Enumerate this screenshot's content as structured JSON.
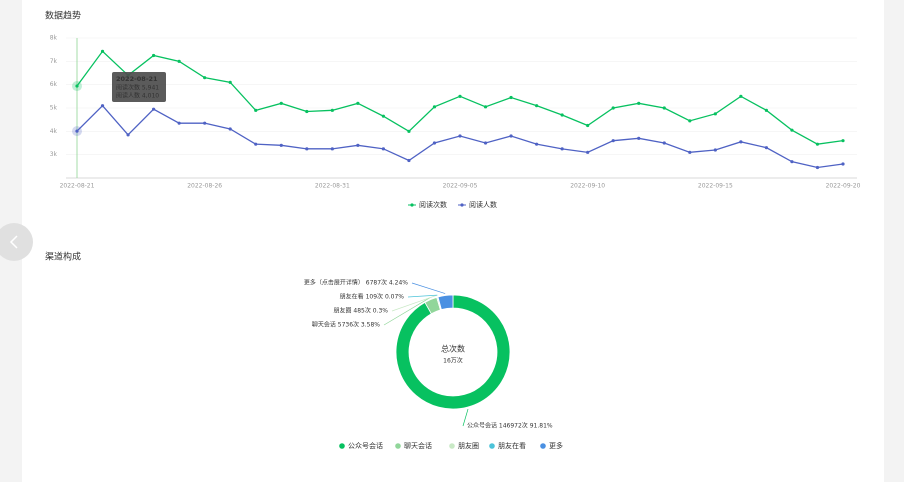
{
  "chart_data": [
    {
      "type": "line",
      "title": "数据趋势",
      "categories": [
        "2022-08-21",
        null,
        null,
        null,
        null,
        "2022-08-26",
        null,
        null,
        null,
        null,
        "2022-08-31",
        null,
        null,
        null,
        null,
        "2022-09-05",
        null,
        null,
        null,
        null,
        "2022-09-10",
        null,
        null,
        null,
        null,
        "2022-09-15",
        null,
        null,
        null,
        null,
        "2022-09-20"
      ],
      "series": [
        {
          "name": "阅读次数",
          "color": "#07c160",
          "values": [
            5941,
            7430,
            6400,
            7250,
            7000,
            6300,
            6100,
            4900,
            5200,
            4850,
            4900,
            5200,
            4650,
            4000,
            5050,
            5500,
            5050,
            5450,
            5100,
            4700,
            4250,
            5000,
            5200,
            5000,
            4450,
            4750,
            5500,
            4900,
            4050,
            3450,
            3600
          ]
        },
        {
          "name": "阅读人数",
          "color": "#4f62c4",
          "values": [
            4010,
            5100,
            3850,
            4950,
            4350,
            4350,
            4100,
            3450,
            3400,
            3250,
            3250,
            3400,
            3250,
            2750,
            3500,
            3800,
            3500,
            3800,
            3450,
            3250,
            3100,
            3600,
            3700,
            3500,
            3100,
            3200,
            3550,
            3300,
            2700,
            2450,
            2600
          ]
        }
      ],
      "ylim": [
        2000,
        8000
      ],
      "yticks": [
        {
          "value": 3000,
          "label": "3k"
        },
        {
          "value": 4000,
          "label": "4k"
        },
        {
          "value": 5000,
          "label": "5k"
        },
        {
          "value": 6000,
          "label": "6k"
        },
        {
          "value": 7000,
          "label": "7k"
        },
        {
          "value": 8000,
          "label": "8k"
        }
      ],
      "grid": true,
      "legend": "bottom",
      "tooltip": {
        "title": "2022-08-21",
        "lines": [
          "阅读次数 5,941",
          "阅读人数 4,010"
        ]
      }
    },
    {
      "type": "pie",
      "title": "渠道构成",
      "categories": [
        "公众号会话",
        "聊天会话",
        "朋友圈",
        "朋友在看",
        "更多"
      ],
      "values": [
        146972,
        5736,
        485,
        109,
        6787
      ],
      "value_labels": [
        "公众号会话 146972次 91.81%",
        "聊天会话 5736次 3.58%",
        "朋友圈 485次 0.3%",
        "朋友在看 109次 0.07%",
        "更多（点击展开详情） 6787次 4.24%"
      ],
      "colors": [
        "#07c160",
        "#91d69a",
        "#c9e9c6",
        "#4cc3d9",
        "#4a90e2"
      ],
      "center_title": "总次数",
      "center_subtitle": "16万次",
      "donut": true,
      "legend": "bottom"
    }
  ]
}
